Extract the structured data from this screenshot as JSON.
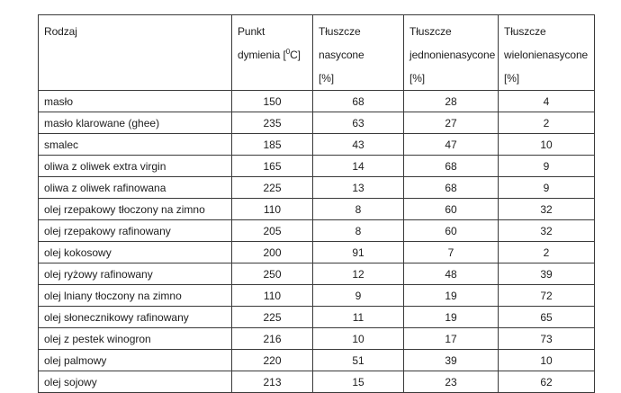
{
  "chart_data": {
    "type": "table",
    "columns": [
      "Rodzaj",
      "Punkt dymienia [⁰C]",
      "Tłuszcze nasycone [%]",
      "Tłuszcze jednonienasycone [%]",
      "Tłuszcze wielonienasycone [%]"
    ],
    "rows": [
      [
        "masło",
        150,
        68,
        28,
        4
      ],
      [
        "masło klarowane (ghee)",
        235,
        63,
        27,
        2
      ],
      [
        "smalec",
        185,
        43,
        47,
        10
      ],
      [
        "oliwa z oliwek extra virgin",
        165,
        14,
        68,
        9
      ],
      [
        "oliwa z oliwek rafinowana",
        225,
        13,
        68,
        9
      ],
      [
        "olej rzepakowy tłoczony na zimno",
        110,
        8,
        60,
        32
      ],
      [
        "olej rzepakowy rafinowany",
        205,
        8,
        60,
        32
      ],
      [
        "olej kokosowy",
        200,
        91,
        7,
        2
      ],
      [
        "olej ryżowy rafinowany",
        250,
        12,
        48,
        39
      ],
      [
        "olej lniany tłoczony na zimno",
        110,
        9,
        19,
        72
      ],
      [
        "olej słonecznikowy rafinowany",
        225,
        11,
        19,
        65
      ],
      [
        "olej z pestek winogron",
        216,
        10,
        17,
        73
      ],
      [
        "olej palmowy",
        220,
        51,
        39,
        10
      ],
      [
        "olej sojowy",
        213,
        15,
        23,
        62
      ]
    ]
  },
  "table": {
    "header": {
      "c0": {
        "line1": "Rodzaj"
      },
      "c1": {
        "line1": "Punkt",
        "line2_pre": "dymienia [",
        "line2_sup": "0",
        "line2_post": "C]"
      },
      "c2": {
        "line1": "Tłuszcze",
        "line2": "nasycone",
        "line3": "[%]"
      },
      "c3": {
        "line1": "Tłuszcze",
        "line2": "jednonienasycone",
        "line3": "[%]"
      },
      "c4": {
        "line1": "Tłuszcze",
        "line2": "wielonienasycone",
        "line3": "[%]"
      }
    }
  },
  "colors": {
    "border": "#3a3a3a",
    "text": "#1c1c1c",
    "background": "#ffffff"
  }
}
